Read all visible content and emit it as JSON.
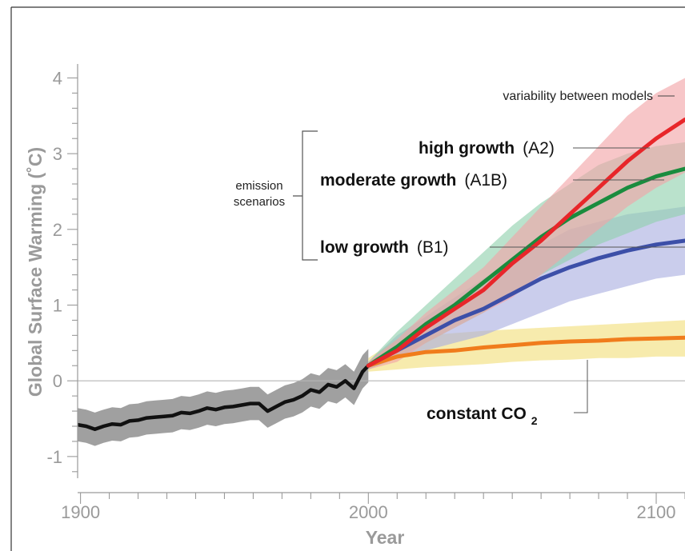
{
  "chart_data": {
    "type": "line",
    "xlabel": "Year",
    "ylabel": "Global Surface Warming (˚C)",
    "xlim": [
      1899,
      2110
    ],
    "ylim": [
      -1.35,
      4.1
    ],
    "x_ticks": [
      1900,
      2000,
      2100
    ],
    "y_ticks": [
      -1,
      0,
      1,
      2,
      3,
      4
    ],
    "grid": false,
    "zero_line": true,
    "historical": {
      "color": "#111111",
      "band_color": "#8f8f8f",
      "x": [
        1899,
        1902,
        1905,
        1908,
        1911,
        1914,
        1917,
        1920,
        1923,
        1926,
        1929,
        1932,
        1935,
        1938,
        1941,
        1944,
        1947,
        1950,
        1953,
        1956,
        1959,
        1962,
        1965,
        1968,
        1971,
        1974,
        1977,
        1980,
        1983,
        1986,
        1989,
        1992,
        1995,
        1998,
        2000
      ],
      "y": [
        -0.58,
        -0.6,
        -0.64,
        -0.6,
        -0.57,
        -0.58,
        -0.53,
        -0.52,
        -0.49,
        -0.48,
        -0.47,
        -0.46,
        -0.42,
        -0.43,
        -0.4,
        -0.36,
        -0.38,
        -0.35,
        -0.34,
        -0.32,
        -0.3,
        -0.3,
        -0.4,
        -0.34,
        -0.28,
        -0.25,
        -0.2,
        -0.12,
        -0.15,
        -0.05,
        -0.08,
        0.0,
        -0.1,
        0.12,
        0.2
      ],
      "band_halfwidth": 0.22
    },
    "series": [
      {
        "key": "high",
        "color": "#e8262a",
        "band_color": "#f2a3a6",
        "x": [
          2000,
          2010,
          2020,
          2030,
          2040,
          2050,
          2060,
          2070,
          2080,
          2090,
          2100,
          2110
        ],
        "y": [
          0.2,
          0.4,
          0.7,
          0.95,
          1.2,
          1.55,
          1.85,
          2.2,
          2.55,
          2.9,
          3.2,
          3.45
        ],
        "band_lower": [
          0.15,
          0.25,
          0.5,
          0.7,
          0.9,
          1.1,
          1.4,
          1.7,
          2.0,
          2.3,
          2.55,
          2.75
        ],
        "band_upper": [
          0.25,
          0.55,
          0.9,
          1.2,
          1.5,
          1.9,
          2.3,
          2.7,
          3.1,
          3.5,
          3.8,
          4.0
        ]
      },
      {
        "key": "moderate",
        "color": "#1a8c3e",
        "band_color": "#8fd1ad",
        "x": [
          2000,
          2010,
          2020,
          2030,
          2040,
          2050,
          2060,
          2070,
          2080,
          2090,
          2100,
          2110
        ],
        "y": [
          0.2,
          0.45,
          0.75,
          1.0,
          1.3,
          1.6,
          1.9,
          2.15,
          2.35,
          2.55,
          2.7,
          2.8
        ],
        "band_lower": [
          0.15,
          0.3,
          0.5,
          0.7,
          0.9,
          1.15,
          1.4,
          1.6,
          1.8,
          1.95,
          2.1,
          2.2
        ],
        "band_upper": [
          0.25,
          0.65,
          1.0,
          1.35,
          1.7,
          2.05,
          2.35,
          2.6,
          2.85,
          3.0,
          3.1,
          3.15
        ]
      },
      {
        "key": "low",
        "color": "#3c4fa8",
        "band_color": "#a9aee0",
        "x": [
          2000,
          2010,
          2020,
          2030,
          2040,
          2050,
          2060,
          2070,
          2080,
          2090,
          2100,
          2110
        ],
        "y": [
          0.2,
          0.4,
          0.6,
          0.8,
          0.95,
          1.15,
          1.35,
          1.5,
          1.62,
          1.72,
          1.8,
          1.85
        ],
        "band_lower": [
          0.15,
          0.3,
          0.4,
          0.5,
          0.6,
          0.75,
          0.9,
          1.05,
          1.15,
          1.25,
          1.35,
          1.4
        ],
        "band_upper": [
          0.25,
          0.6,
          0.85,
          1.1,
          1.35,
          1.55,
          1.8,
          2.0,
          2.1,
          2.2,
          2.25,
          2.3
        ]
      },
      {
        "key": "constant",
        "color": "#f07c1c",
        "band_color": "#f2df7a",
        "x": [
          2000,
          2010,
          2020,
          2030,
          2040,
          2050,
          2060,
          2070,
          2080,
          2090,
          2100,
          2110
        ],
        "y": [
          0.2,
          0.32,
          0.38,
          0.4,
          0.44,
          0.47,
          0.5,
          0.52,
          0.53,
          0.55,
          0.56,
          0.57
        ],
        "band_lower": [
          0.12,
          0.15,
          0.18,
          0.2,
          0.22,
          0.25,
          0.27,
          0.28,
          0.3,
          0.3,
          0.32,
          0.32
        ],
        "band_upper": [
          0.3,
          0.55,
          0.6,
          0.63,
          0.66,
          0.68,
          0.7,
          0.72,
          0.74,
          0.76,
          0.78,
          0.8
        ]
      }
    ]
  },
  "annotations": {
    "variability": "variability between models",
    "emission_line1": "emission",
    "emission_line2": "scenarios",
    "high_bold": "high growth",
    "high_code": "(A2)",
    "moderate_bold": "moderate growth",
    "moderate_code": "(A1B)",
    "low_bold": "low growth",
    "low_code": "(B1)",
    "constant_main": "constant CO",
    "constant_sub": "2"
  }
}
